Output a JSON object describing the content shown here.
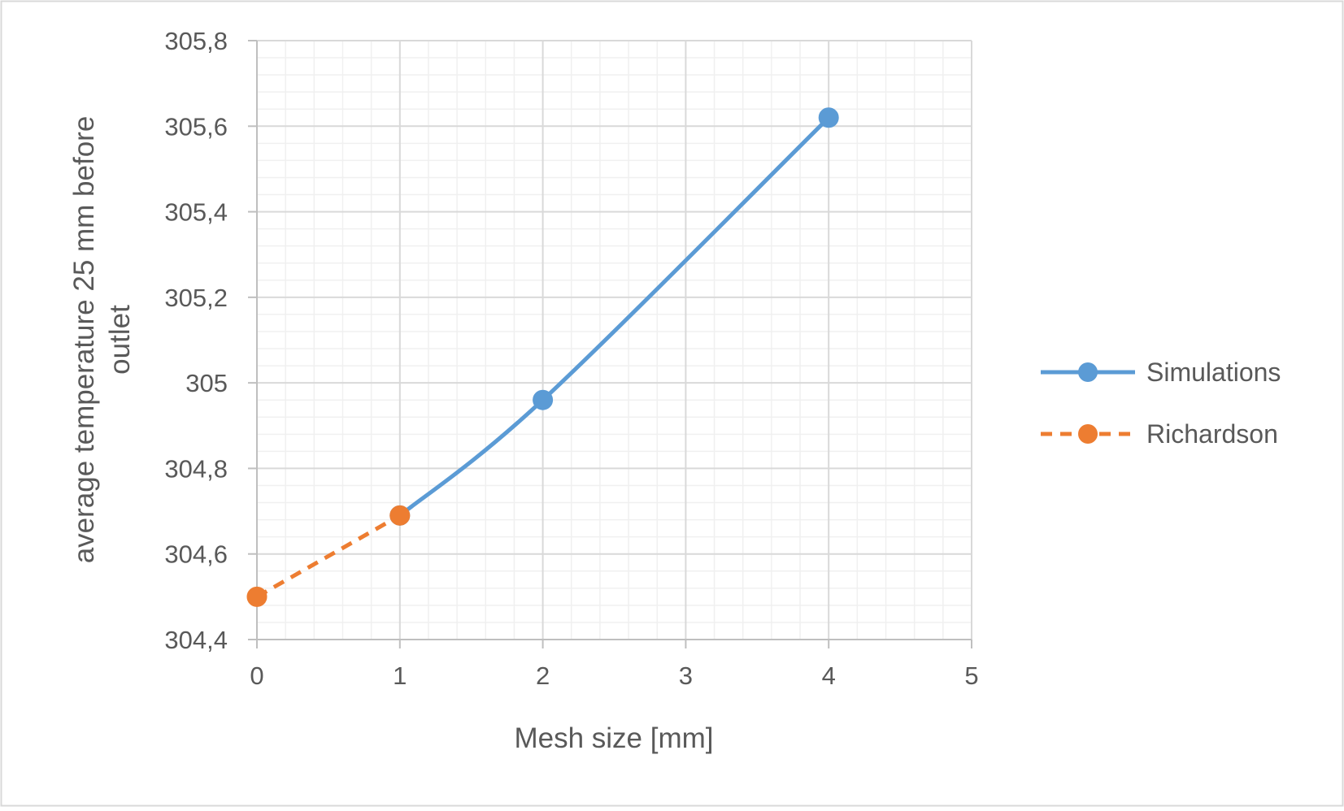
{
  "chart_data": {
    "type": "scatter",
    "xlabel": "Mesh size [mm]",
    "ylabel_lines": [
      "average temperature 25 mm before",
      "outlet"
    ],
    "xlim": [
      0,
      5
    ],
    "ylim": [
      304.4,
      305.8
    ],
    "x_ticks": [
      0,
      1,
      2,
      3,
      4,
      5
    ],
    "x_tick_labels": [
      "0",
      "1",
      "2",
      "3",
      "4",
      "5"
    ],
    "y_ticks": [
      304.4,
      304.6,
      304.8,
      305,
      305.2,
      305.4,
      305.6,
      305.8
    ],
    "y_tick_labels": [
      "304,4",
      "304,6",
      "304,8",
      "305",
      "305,2",
      "305,4",
      "305,6",
      "305,8"
    ],
    "grid": true,
    "minor_grid": true,
    "legend_position": "right",
    "series": [
      {
        "name": "Simulations",
        "color": "#5B9BD5",
        "line_style": "solid",
        "smooth": true,
        "marker": "circle",
        "x": [
          1,
          2,
          4
        ],
        "y": [
          304.69,
          304.96,
          305.62
        ]
      },
      {
        "name": "Richardson",
        "color": "#ED7D31",
        "line_style": "dashed",
        "smooth": false,
        "marker": "circle",
        "x": [
          0,
          1
        ],
        "y": [
          304.5,
          304.69
        ]
      }
    ]
  }
}
